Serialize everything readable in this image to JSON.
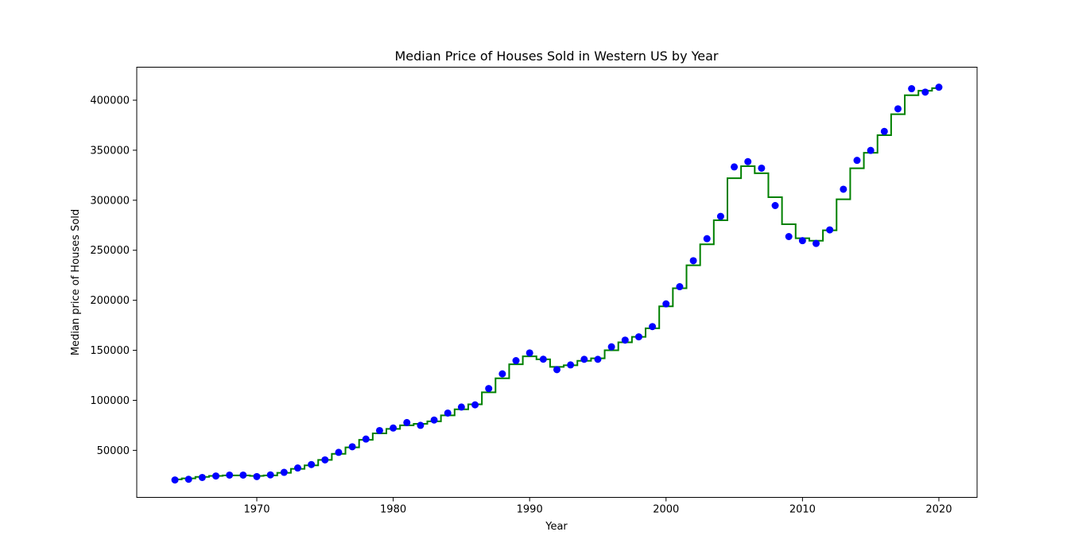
{
  "chart_data": {
    "type": "line",
    "title": "Median Price of Houses Sold in Western US by Year",
    "xlabel": "Year",
    "ylabel": "Median price of Houses Sold",
    "xlim": [
      1961.2,
      2022.8
    ],
    "ylim": [
      3000,
      433000
    ],
    "xticks": [
      1970,
      1980,
      1990,
      2000,
      2010,
      2020
    ],
    "yticks": [
      50000,
      100000,
      150000,
      200000,
      250000,
      300000,
      350000,
      400000
    ],
    "grid": false,
    "series": [
      {
        "style": "points",
        "color": "#0000ff",
        "x": [
          1964,
          1965,
          1966,
          1967,
          1968,
          1969,
          1970,
          1971,
          1972,
          1973,
          1974,
          1975,
          1976,
          1977,
          1978,
          1979,
          1980,
          1981,
          1982,
          1983,
          1984,
          1985,
          1986,
          1987,
          1988,
          1989,
          1990,
          1991,
          1992,
          1993,
          1994,
          1995,
          1996,
          1997,
          1998,
          1999,
          2000,
          2001,
          2002,
          2003,
          2004,
          2005,
          2006,
          2007,
          2008,
          2009,
          2010,
          2011,
          2012,
          2013,
          2014,
          2015,
          2016,
          2017,
          2018,
          2019,
          2020
        ],
        "y": [
          20400,
          21100,
          22900,
          24400,
          25300,
          25300,
          23800,
          25500,
          28000,
          32400,
          35800,
          40500,
          48000,
          53600,
          61300,
          69800,
          72300,
          77800,
          75000,
          80300,
          87300,
          93300,
          95500,
          111800,
          126500,
          139700,
          147400,
          141100,
          130700,
          135400,
          141000,
          141000,
          153500,
          160200,
          163500,
          173700,
          196400,
          213600,
          239600,
          261600,
          283900,
          333300,
          338600,
          332100,
          294700,
          263700,
          259600,
          256800,
          270400,
          311000,
          339900,
          349800,
          368800,
          391400,
          411500,
          408100,
          413000
        ]
      },
      {
        "style": "step",
        "color": "#008000",
        "x": [
          1964,
          1965,
          1966,
          1967,
          1968,
          1969,
          1970,
          1971,
          1972,
          1973,
          1974,
          1975,
          1976,
          1977,
          1978,
          1979,
          1980,
          1981,
          1982,
          1983,
          1984,
          1985,
          1986,
          1987,
          1988,
          1989,
          1990,
          1991,
          1992,
          1993,
          1994,
          1995,
          1996,
          1997,
          1998,
          1999,
          2000,
          2001,
          2002,
          2003,
          2004,
          2005,
          2006,
          2007,
          2008,
          2009,
          2010,
          2011,
          2012,
          2013,
          2014,
          2015,
          2016,
          2017,
          2018,
          2019,
          2020
        ],
        "y": [
          21000,
          22000,
          23500,
          24500,
          25000,
          25000,
          24500,
          25000,
          27500,
          31500,
          35000,
          40500,
          46500,
          53000,
          60500,
          67000,
          71500,
          75000,
          76500,
          79000,
          85000,
          91000,
          96000,
          108000,
          122000,
          136000,
          144000,
          141000,
          133500,
          135000,
          139500,
          142000,
          150000,
          158000,
          163500,
          172000,
          194000,
          212000,
          235000,
          256000,
          280000,
          322000,
          334000,
          327000,
          303000,
          276000,
          262000,
          259500,
          270000,
          301000,
          332000,
          347500,
          365000,
          386000,
          405000,
          409500,
          412000
        ]
      }
    ]
  }
}
